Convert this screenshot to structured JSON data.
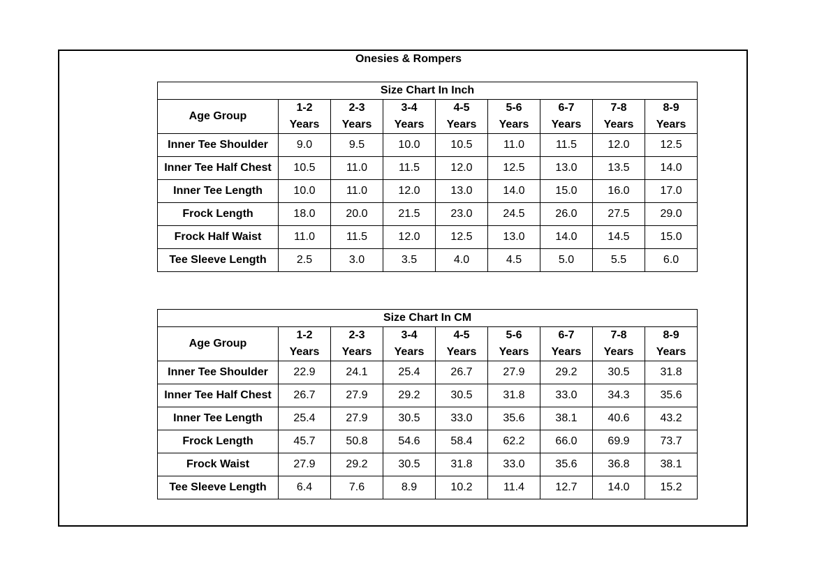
{
  "title": "Onesies & Rompers",
  "age_group_label": "Age Group",
  "age_groups": [
    {
      "range": "1-2",
      "unit": "Years"
    },
    {
      "range": "2-3",
      "unit": "Years"
    },
    {
      "range": "3-4",
      "unit": "Years"
    },
    {
      "range": "4-5",
      "unit": "Years"
    },
    {
      "range": "5-6",
      "unit": "Years"
    },
    {
      "range": "6-7",
      "unit": "Years"
    },
    {
      "range": "7-8",
      "unit": "Years"
    },
    {
      "range": "8-9",
      "unit": "Years"
    }
  ],
  "tables": [
    {
      "caption": "Size Chart In Inch",
      "rows": [
        {
          "label": "Inner Tee Shoulder",
          "values": [
            "9.0",
            "9.5",
            "10.0",
            "10.5",
            "11.0",
            "11.5",
            "12.0",
            "12.5"
          ]
        },
        {
          "label": "Inner Tee Half Chest",
          "values": [
            "10.5",
            "11.0",
            "11.5",
            "12.0",
            "12.5",
            "13.0",
            "13.5",
            "14.0"
          ]
        },
        {
          "label": "Inner Tee Length",
          "values": [
            "10.0",
            "11.0",
            "12.0",
            "13.0",
            "14.0",
            "15.0",
            "16.0",
            "17.0"
          ]
        },
        {
          "label": "Frock Length",
          "values": [
            "18.0",
            "20.0",
            "21.5",
            "23.0",
            "24.5",
            "26.0",
            "27.5",
            "29.0"
          ]
        },
        {
          "label": "Frock Half Waist",
          "values": [
            "11.0",
            "11.5",
            "12.0",
            "12.5",
            "13.0",
            "14.0",
            "14.5",
            "15.0"
          ]
        },
        {
          "label": "Tee Sleeve Length",
          "values": [
            "2.5",
            "3.0",
            "3.5",
            "4.0",
            "4.5",
            "5.0",
            "5.5",
            "6.0"
          ]
        }
      ]
    },
    {
      "caption": "Size Chart In CM",
      "rows": [
        {
          "label": "Inner Tee Shoulder",
          "values": [
            "22.9",
            "24.1",
            "25.4",
            "26.7",
            "27.9",
            "29.2",
            "30.5",
            "31.8"
          ]
        },
        {
          "label": "Inner Tee Half Chest",
          "values": [
            "26.7",
            "27.9",
            "29.2",
            "30.5",
            "31.8",
            "33.0",
            "34.3",
            "35.6"
          ]
        },
        {
          "label": "Inner Tee Length",
          "values": [
            "25.4",
            "27.9",
            "30.5",
            "33.0",
            "35.6",
            "38.1",
            "40.6",
            "43.2"
          ]
        },
        {
          "label": "Frock Length",
          "values": [
            "45.7",
            "50.8",
            "54.6",
            "58.4",
            "62.2",
            "66.0",
            "69.9",
            "73.7"
          ]
        },
        {
          "label": "Frock Waist",
          "values": [
            "27.9",
            "29.2",
            "30.5",
            "31.8",
            "33.0",
            "35.6",
            "36.8",
            "38.1"
          ]
        },
        {
          "label": "Tee Sleeve Length",
          "values": [
            "6.4",
            "7.6",
            "8.9",
            "10.2",
            "11.4",
            "12.7",
            "14.0",
            "15.2"
          ]
        }
      ]
    }
  ]
}
